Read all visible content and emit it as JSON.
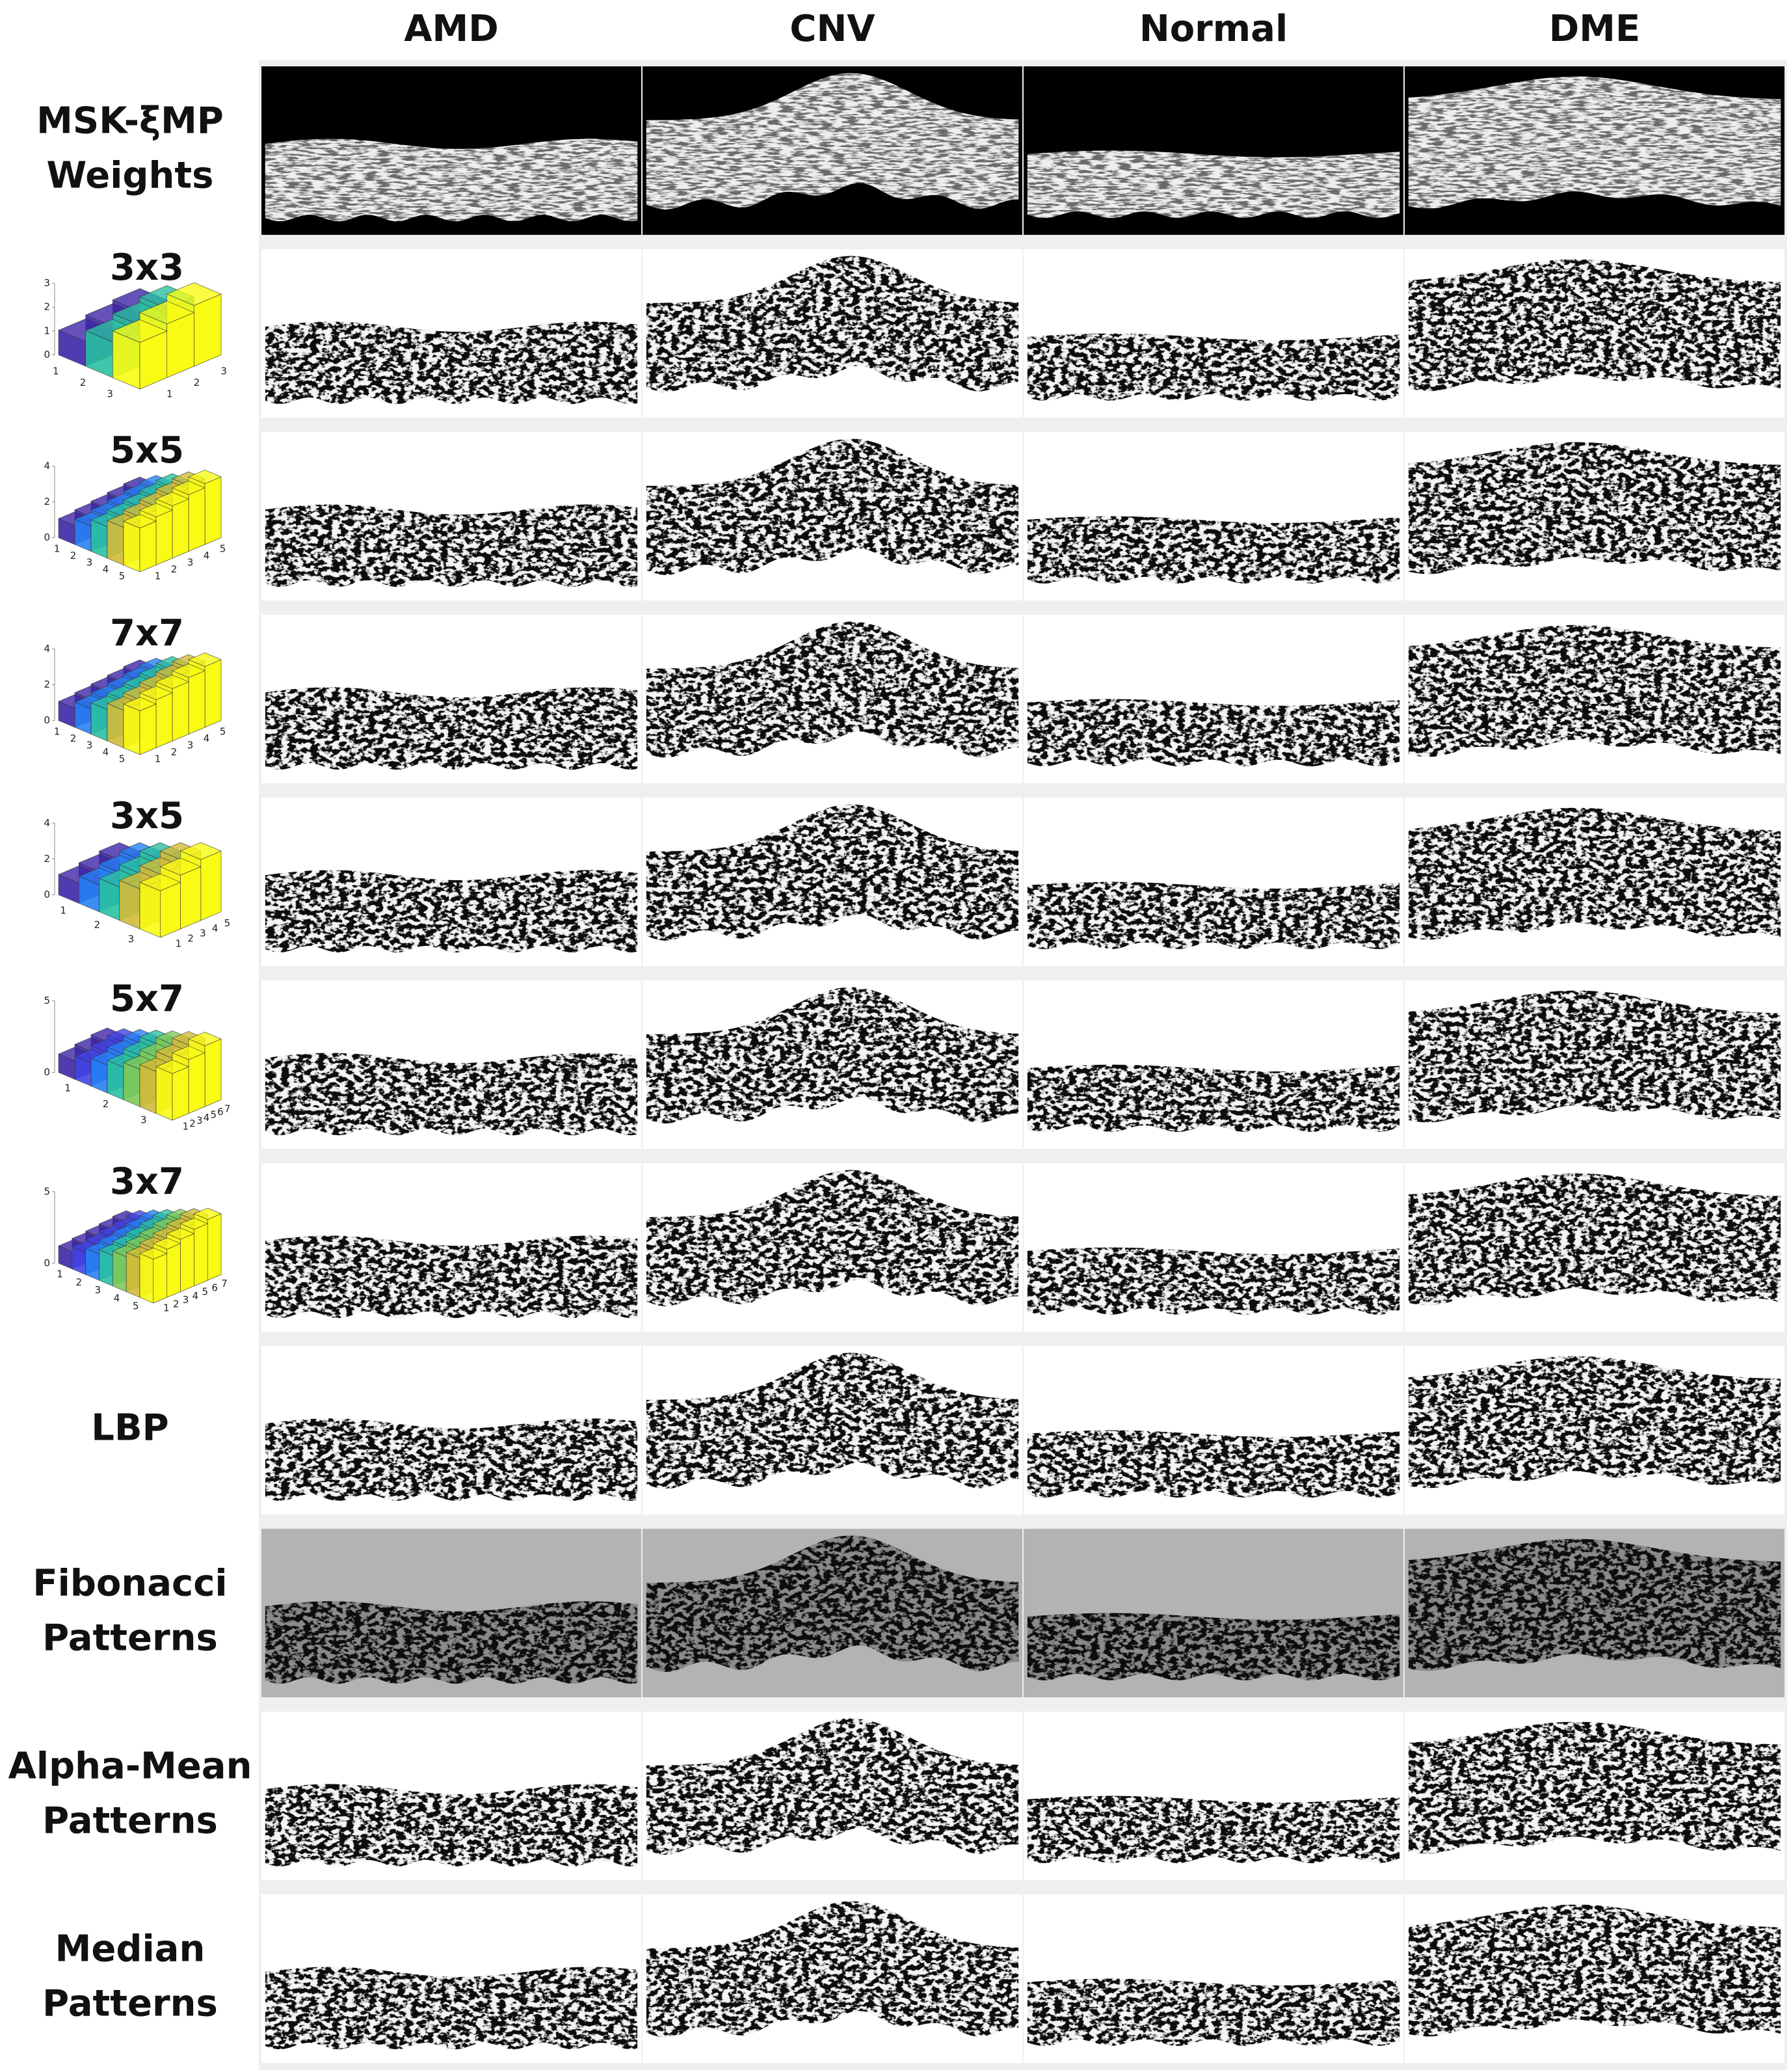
{
  "columns": [
    "AMD",
    "CNV",
    "Normal",
    "DME"
  ],
  "rows": [
    {
      "label_lines": [
        "MSK-ξMP",
        "Weights"
      ]
    },
    {
      "label_lines": [
        "3x3"
      ],
      "kernel": {
        "zticks": [
          0,
          1,
          2,
          3
        ],
        "xticks": [
          1,
          2,
          3
        ],
        "yticks": [
          1,
          2,
          3
        ]
      }
    },
    {
      "label_lines": [
        "5x5"
      ],
      "kernel": {
        "zticks": [
          0,
          2,
          4
        ],
        "xticks": [
          1,
          2,
          3,
          4,
          5
        ],
        "yticks": [
          1,
          2,
          3,
          4,
          5
        ]
      }
    },
    {
      "label_lines": [
        "7x7"
      ],
      "kernel": {
        "zticks": [
          0,
          2,
          4
        ],
        "xticks": [
          1,
          2,
          3,
          4,
          5
        ],
        "yticks": [
          1,
          2,
          3,
          4,
          5
        ]
      }
    },
    {
      "label_lines": [
        "3x5"
      ],
      "kernel": {
        "zticks": [
          0,
          2,
          4
        ],
        "xticks": [
          1,
          2,
          3
        ],
        "yticks": [
          1,
          2,
          3,
          4,
          5
        ]
      }
    },
    {
      "label_lines": [
        "5x7"
      ],
      "kernel": {
        "zticks": [
          0,
          5
        ],
        "xticks": [
          1,
          2,
          3
        ],
        "yticks": [
          1,
          2,
          3,
          4,
          5,
          6,
          7
        ]
      }
    },
    {
      "label_lines": [
        "3x7"
      ],
      "kernel": {
        "zticks": [
          0,
          5
        ],
        "xticks": [
          1,
          2,
          3,
          4,
          5
        ],
        "yticks": [
          1,
          2,
          3,
          4,
          5,
          6,
          7
        ]
      }
    },
    {
      "label_lines": [
        "LBP"
      ]
    },
    {
      "label_lines": [
        "Fibonacci",
        "Patterns"
      ]
    },
    {
      "label_lines": [
        "Alpha-Mean",
        "Patterns"
      ]
    },
    {
      "label_lines": [
        "Median",
        "Patterns"
      ]
    }
  ]
}
